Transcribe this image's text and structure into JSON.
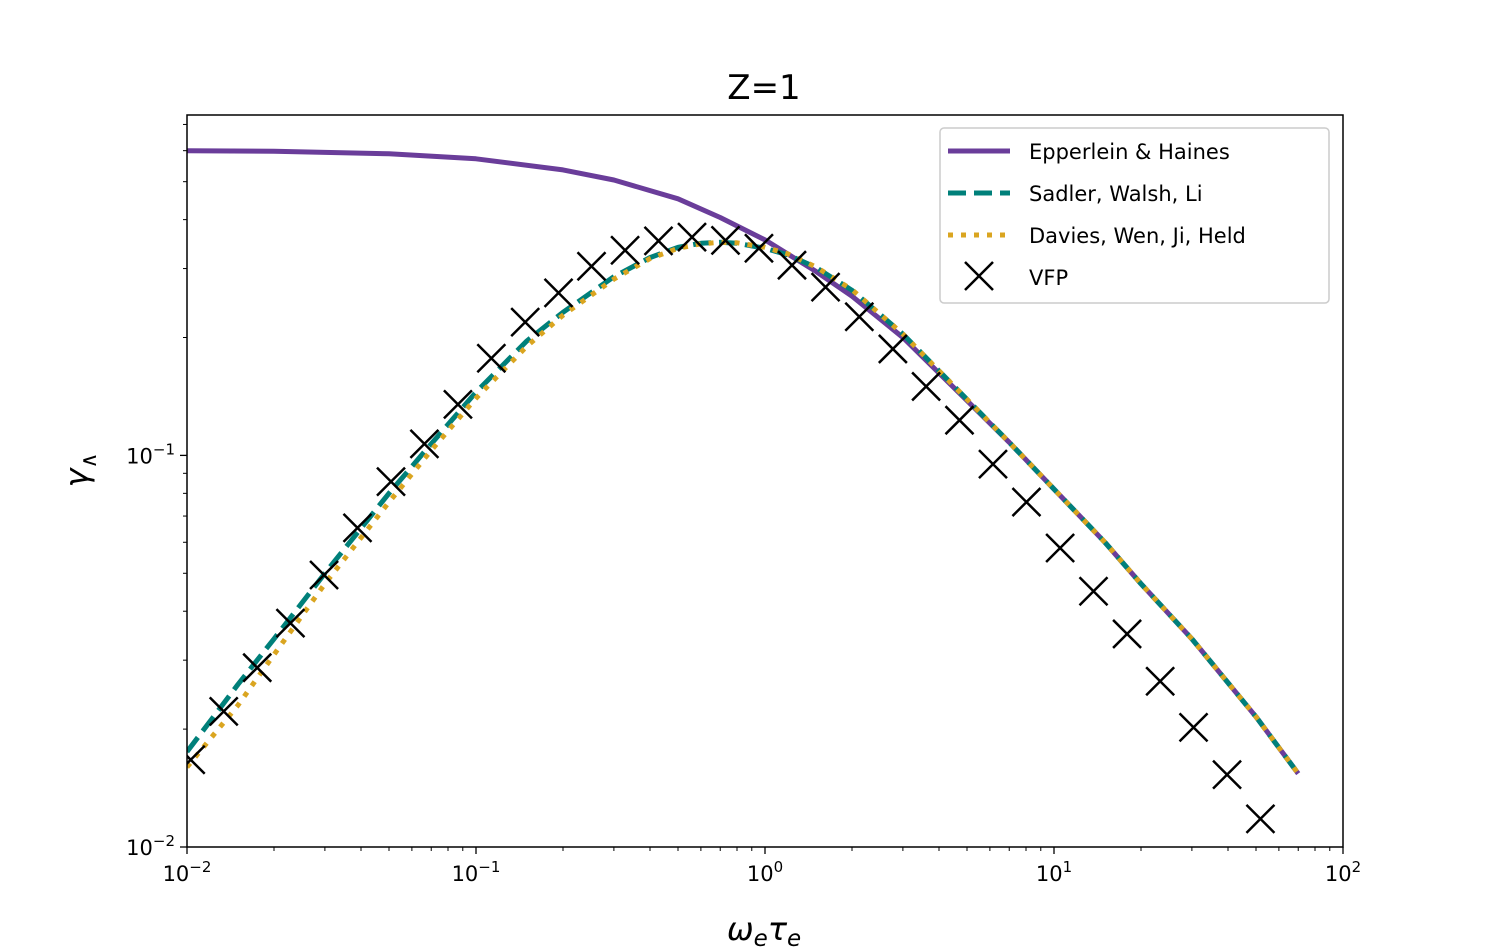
{
  "chart_data": {
    "type": "line",
    "title": "Z=1",
    "xlabel_main": "ω",
    "xlabel_sub1": "e",
    "xlabel_mid": "τ",
    "xlabel_sub2": "e",
    "ylabel_main": "γ",
    "ylabel_sub": "∧",
    "xscale": "log",
    "yscale": "log",
    "xlim": [
      0.01,
      100
    ],
    "ylim": [
      0.01,
      0.74
    ],
    "x_ticks": [
      {
        "value": 0.01,
        "base": "10",
        "exp": "−2"
      },
      {
        "value": 0.1,
        "base": "10",
        "exp": "−1"
      },
      {
        "value": 1,
        "base": "10",
        "exp": "0"
      },
      {
        "value": 10,
        "base": "10",
        "exp": "1"
      },
      {
        "value": 100,
        "base": "10",
        "exp": "2"
      }
    ],
    "y_ticks": [
      {
        "value": 0.01,
        "base": "10",
        "exp": "−2"
      },
      {
        "value": 0.1,
        "base": "10",
        "exp": "−1"
      }
    ],
    "legend_position": "upper right",
    "series": [
      {
        "name": "Epperlein & Haines",
        "style": "solid",
        "color": "#6a3d9a",
        "x": [
          0.01,
          0.02,
          0.05,
          0.1,
          0.2,
          0.3,
          0.5,
          0.7,
          1.0,
          1.5,
          2,
          3,
          5,
          7,
          10,
          15,
          20,
          30,
          50,
          70
        ],
        "y": [
          0.6,
          0.598,
          0.589,
          0.572,
          0.536,
          0.505,
          0.452,
          0.405,
          0.355,
          0.295,
          0.255,
          0.2,
          0.138,
          0.108,
          0.082,
          0.06,
          0.047,
          0.034,
          0.0215,
          0.0154
        ]
      },
      {
        "name": "Sadler, Walsh, Li",
        "style": "dashed",
        "color": "#00807a",
        "x": [
          0.01,
          0.015,
          0.02,
          0.03,
          0.05,
          0.07,
          0.1,
          0.15,
          0.2,
          0.3,
          0.4,
          0.5,
          0.6,
          0.7,
          0.8,
          1.0,
          1.2,
          1.5,
          2,
          3,
          5,
          7,
          10,
          15,
          20,
          30,
          50,
          70
        ],
        "y": [
          0.0175,
          0.026,
          0.034,
          0.05,
          0.08,
          0.107,
          0.145,
          0.196,
          0.232,
          0.286,
          0.32,
          0.34,
          0.348,
          0.35,
          0.348,
          0.338,
          0.325,
          0.302,
          0.264,
          0.204,
          0.139,
          0.108,
          0.082,
          0.06,
          0.047,
          0.034,
          0.0215,
          0.0154
        ]
      },
      {
        "name": "Davies, Wen, Ji, Held",
        "style": "dotted",
        "color": "#daa520",
        "x": [
          0.01,
          0.015,
          0.02,
          0.03,
          0.05,
          0.07,
          0.1,
          0.15,
          0.2,
          0.3,
          0.4,
          0.5,
          0.6,
          0.7,
          0.8,
          1.0,
          1.2,
          1.5,
          2,
          3,
          5,
          7,
          10,
          15,
          20,
          30,
          50,
          70
        ],
        "y": [
          0.016,
          0.023,
          0.031,
          0.047,
          0.076,
          0.103,
          0.14,
          0.19,
          0.228,
          0.282,
          0.318,
          0.338,
          0.347,
          0.35,
          0.349,
          0.34,
          0.327,
          0.303,
          0.265,
          0.204,
          0.139,
          0.108,
          0.082,
          0.06,
          0.047,
          0.034,
          0.0215,
          0.0154
        ]
      },
      {
        "name": "VFP",
        "style": "marker-x",
        "color": "#000000",
        "x": [
          0.0103,
          0.0134,
          0.0175,
          0.0228,
          0.0298,
          0.0389,
          0.0508,
          0.0663,
          0.0866,
          0.113,
          0.148,
          0.193,
          0.251,
          0.328,
          0.428,
          0.559,
          0.73,
          0.953,
          1.24,
          1.62,
          2.12,
          2.77,
          3.61,
          4.71,
          6.15,
          8.03,
          10.5,
          13.7,
          17.9,
          23.3,
          30.4,
          39.7,
          51.8
        ],
        "y": [
          0.0167,
          0.0222,
          0.0287,
          0.0373,
          0.0495,
          0.0653,
          0.0857,
          0.107,
          0.135,
          0.177,
          0.219,
          0.26,
          0.304,
          0.334,
          0.353,
          0.361,
          0.354,
          0.338,
          0.306,
          0.269,
          0.226,
          0.187,
          0.15,
          0.123,
          0.095,
          0.076,
          0.058,
          0.045,
          0.035,
          0.0265,
          0.0202,
          0.0153,
          0.0118
        ]
      }
    ]
  }
}
